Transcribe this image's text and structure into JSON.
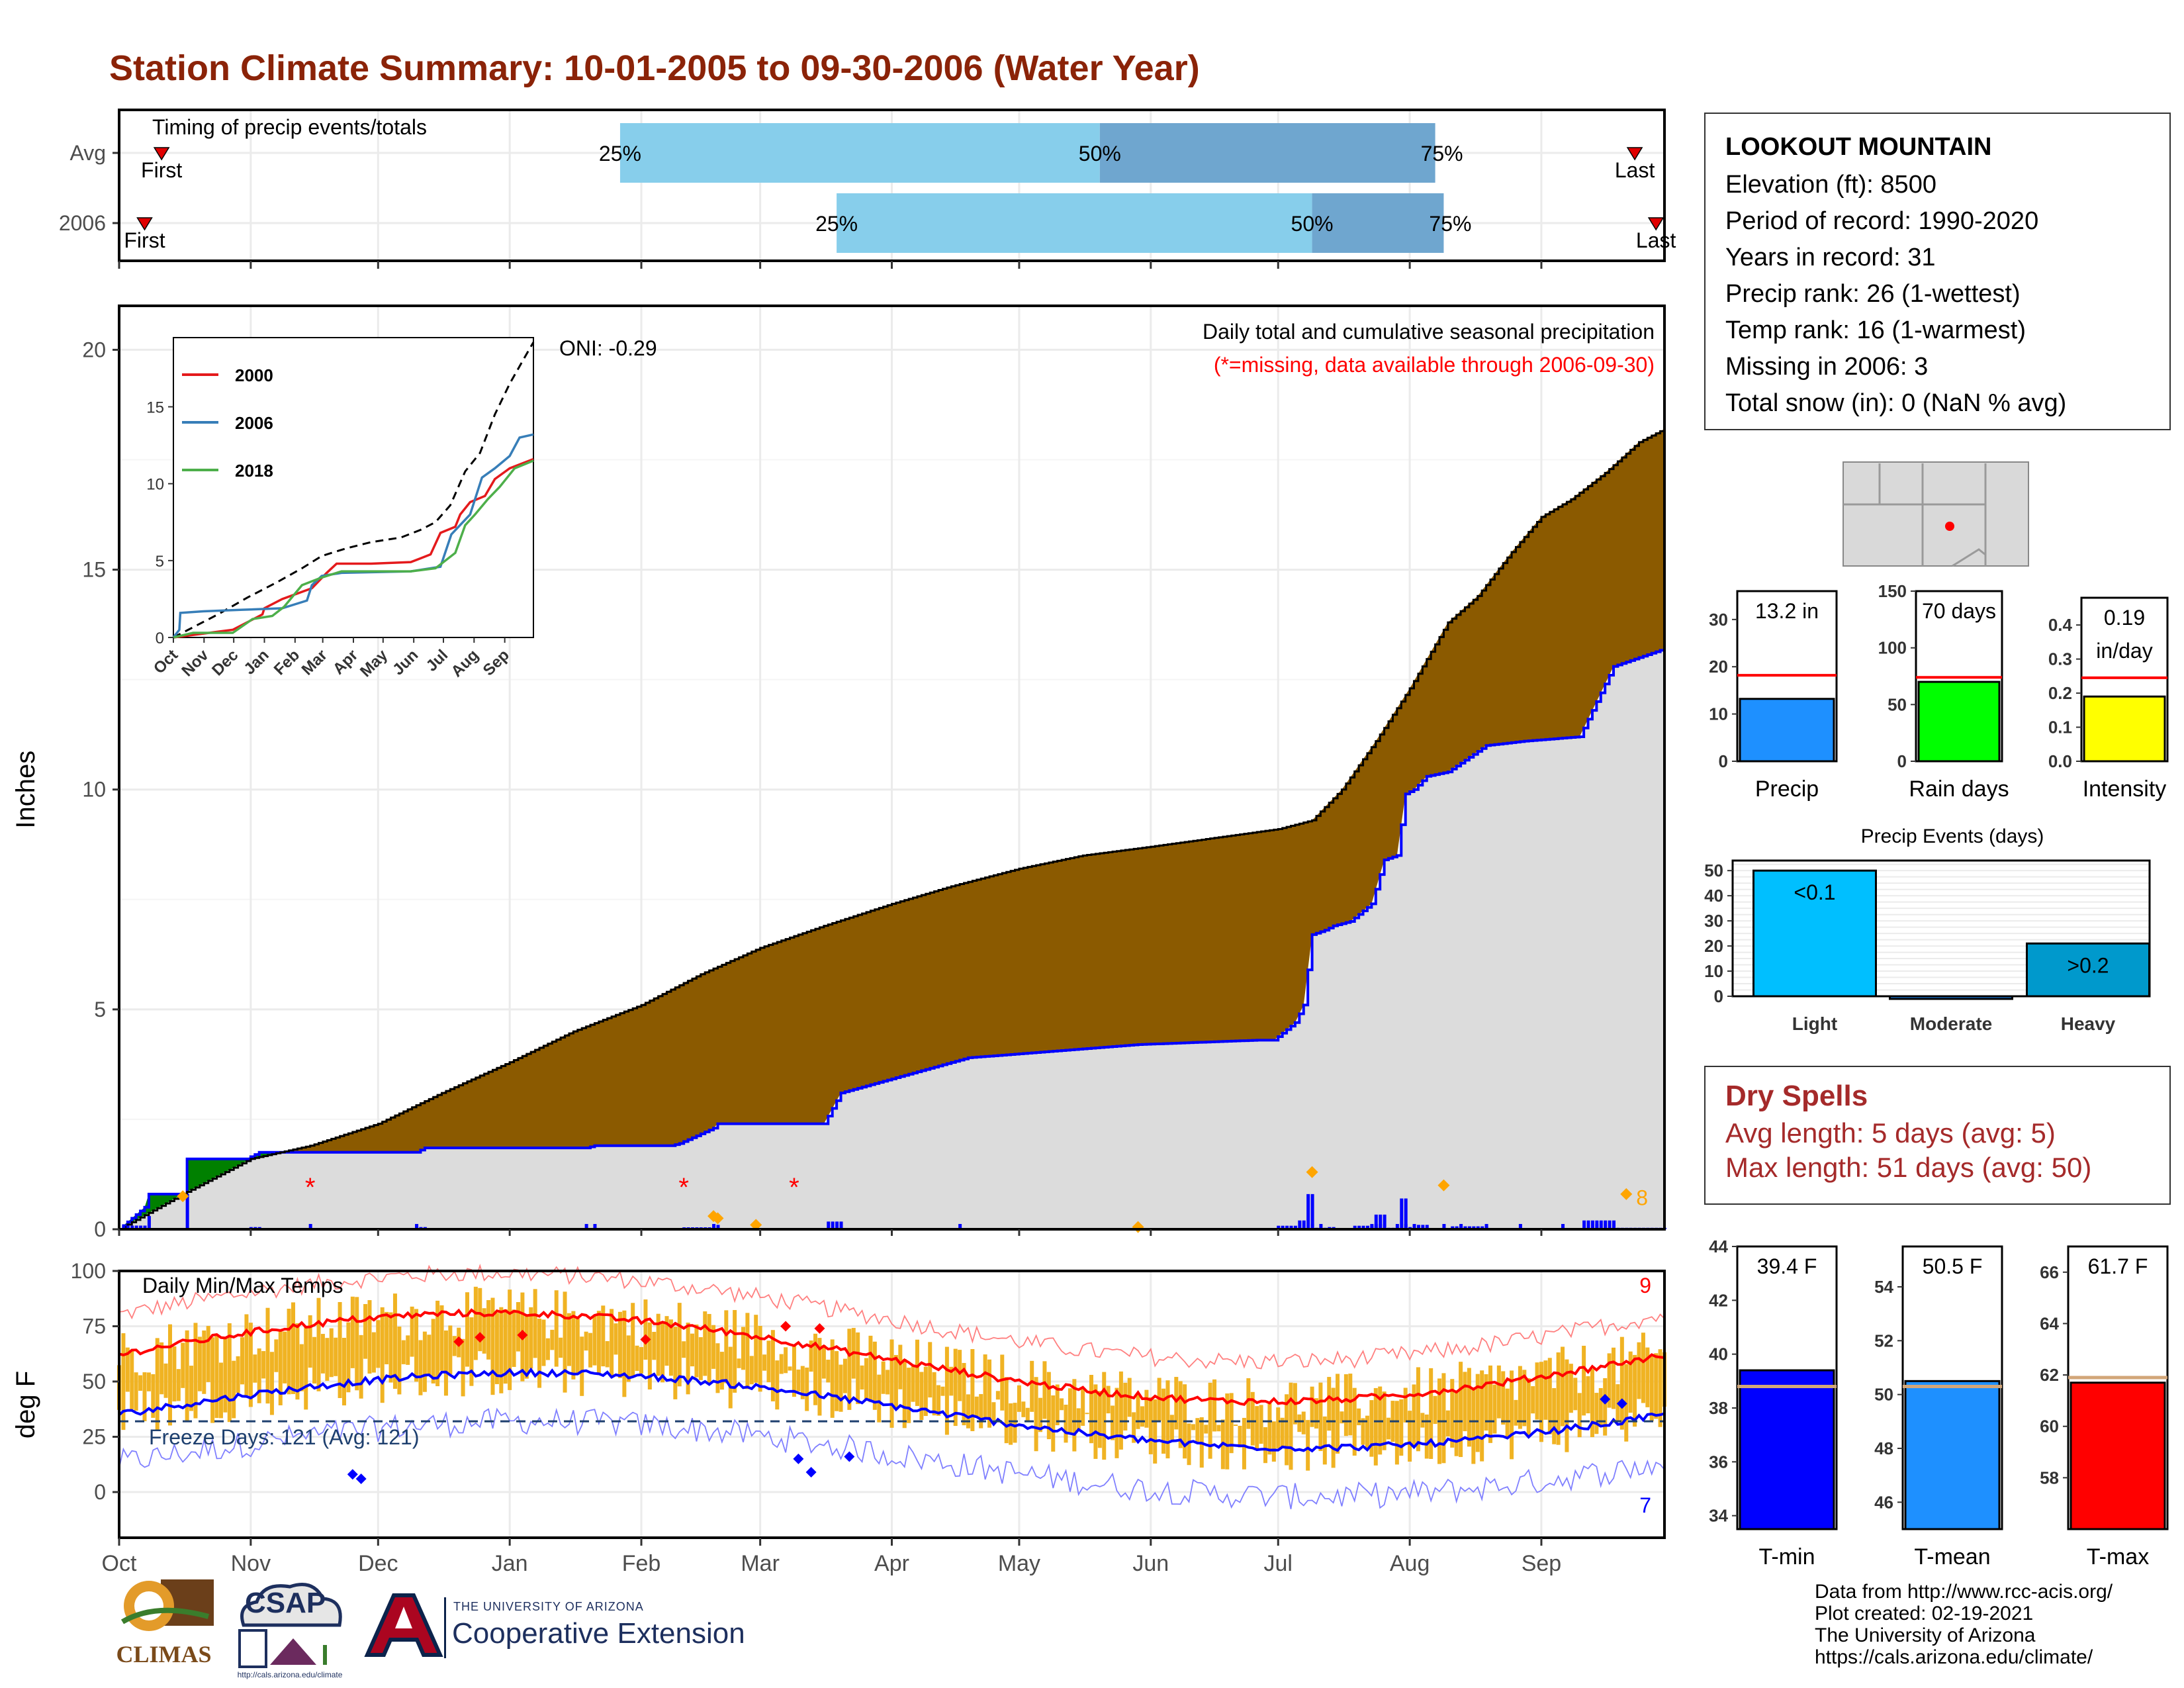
{
  "page": {
    "title": "Station Climate Summary: 10-01-2005 to 09-30-2006 (Water Year)"
  },
  "colors": {
    "title": "#8b2308",
    "avg_cum": "#8b5a00",
    "year_cum": "#0000ff",
    "excess": "#008000",
    "quartile_light": "#87ceeb",
    "quartile_dark": "#6fa6cf",
    "temp_bar": "#f0b323",
    "tmax_line": "#ff0000",
    "tmin_line": "#0000ff",
    "dry_spells": "#a52a2a"
  },
  "timing": {
    "label": "Timing of precip events/totals",
    "rows": [
      {
        "name": "Avg",
        "first": "First",
        "last": "Last",
        "p25_label": "25%",
        "p50_label": "50%",
        "p75_label": "75%",
        "first_day": 10,
        "p25_day": 118,
        "p50_day": 231,
        "p75_day": 310,
        "last_day": 357
      },
      {
        "name": "2006",
        "first": "First",
        "last": "Last",
        "p25_label": "25%",
        "p50_label": "50%",
        "p75_label": "75%",
        "first_day": 6,
        "p25_day": 169,
        "p50_day": 281,
        "p75_day": 312,
        "last_day": 362
      }
    ]
  },
  "precip_panel": {
    "title": "Daily total and cumulative seasonal precipitation",
    "subtitle": "(*=missing, data available through 2006-09-30)",
    "oni": "ONI: -0.29",
    "ylabel": "Inches",
    "yticks": [
      "0",
      "5",
      "10",
      "15",
      "20"
    ],
    "count_label": "8"
  },
  "inset": {
    "yticks": [
      "0",
      "5",
      "10",
      "15"
    ],
    "months": [
      "Oct",
      "Nov",
      "Dec",
      "Jan",
      "Feb",
      "Mar",
      "Apr",
      "May",
      "Jun",
      "Jul",
      "Aug",
      "Sep"
    ],
    "legend": [
      "2000",
      "2006",
      "2018"
    ]
  },
  "temp_panel": {
    "title": "Daily Min/Max Temps",
    "ylabel": "deg F",
    "yticks": [
      "0",
      "25",
      "50",
      "75",
      "100"
    ],
    "freeze_label": "Freeze Days: 121 (Avg: 121)",
    "max_count": "9",
    "min_count": "7"
  },
  "x_months": [
    "Oct",
    "Nov",
    "Dec",
    "Jan",
    "Feb",
    "Mar",
    "Apr",
    "May",
    "Jun",
    "Jul",
    "Aug",
    "Sep"
  ],
  "station": {
    "name": "LOOKOUT MOUNTAIN",
    "lines": [
      "Elevation (ft): 8500",
      "Period of record: 1990-2020",
      "Years in record: 31",
      "Precip rank: 26 (1-wettest)",
      "Temp rank: 16 (1-warmest)",
      "Missing in 2006: 3",
      "Total snow (in): 0 (NaN % avg)"
    ]
  },
  "mini_bars": [
    {
      "label": "Precip",
      "value_label": "13.2 in",
      "value": 13.2,
      "avg": 18.2,
      "yticks": [
        "0",
        "10",
        "20",
        "30"
      ],
      "ymax": 36,
      "color": "#1e90ff"
    },
    {
      "label": "Rain days",
      "value_label": "70 days",
      "value": 70,
      "avg": 74,
      "yticks": [
        "0",
        "50",
        "100",
        "150"
      ],
      "ymax": 150,
      "color": "#00ff00"
    },
    {
      "label": "Intensity",
      "value_label": "0.19",
      "value_label2": "in/day",
      "value": 0.19,
      "avg": 0.245,
      "yticks": [
        "0.0",
        "0.1",
        "0.2",
        "0.3",
        "0.4"
      ],
      "ymax": 0.48,
      "color": "#ffff00"
    }
  ],
  "precip_events": {
    "title": "Precip Events (days)",
    "yticks": [
      "0",
      "10",
      "20",
      "30",
      "40",
      "50"
    ],
    "bars": [
      {
        "label": "Light",
        "value": 50,
        "value_label": "<0.1",
        "color": "#00bfff"
      },
      {
        "label": "Moderate",
        "value": 0,
        "value_label": "",
        "color": "#1e90ff"
      },
      {
        "label": "Heavy",
        "value": 21,
        "value_label": ">0.2",
        "color": "#0099cc"
      }
    ]
  },
  "dry_spells": {
    "title": "Dry Spells",
    "avg_line": "Avg length: 5 days (avg: 5)",
    "max_line": "Max length: 51 days (avg: 50)"
  },
  "temp_bars": [
    {
      "label": "T-min",
      "value_label": "39.4 F",
      "value": 39.4,
      "avg": 38.8,
      "ymin": 33.5,
      "ymax": 44,
      "yticks": [
        "34",
        "36",
        "38",
        "40",
        "42",
        "44"
      ],
      "color": "#0000ff"
    },
    {
      "label": "T-mean",
      "value_label": "50.5 F",
      "value": 50.5,
      "avg": 50.3,
      "ymin": 45,
      "ymax": 55.5,
      "yticks": [
        "46",
        "48",
        "50",
        "52",
        "54"
      ],
      "color": "#1e90ff"
    },
    {
      "label": "T-max",
      "value_label": "61.7 F",
      "value": 61.7,
      "avg": 61.9,
      "ymin": 56,
      "ymax": 67,
      "yticks": [
        "58",
        "60",
        "62",
        "64",
        "66"
      ],
      "color": "#ff0000"
    }
  ],
  "footer": {
    "lines": [
      "Data from http://www.rcc-acis.org/",
      "Plot created: 02-19-2021",
      "The University of Arizona",
      "https://cals.arizona.edu/climate/"
    ]
  },
  "logos": {
    "climas": "CLIMAS",
    "csap": "CSAP",
    "csap_url": "http://cals.arizona.edu/climate",
    "ua_small": "THE UNIVERSITY OF ARIZONA",
    "ua_big": "Cooperative Extension"
  },
  "chart_data": {
    "type": "area",
    "title": "Daily total and cumulative seasonal precipitation",
    "ylabel": "Inches",
    "ylim": [
      0,
      20
    ],
    "x_unit": "day of water year (0 = Oct 1)",
    "series": [
      {
        "name": "Avg cumulative",
        "x": [
          0,
          15,
          31,
          45,
          61,
          76,
          92,
          107,
          123,
          137,
          151,
          166,
          182,
          196,
          212,
          227,
          243,
          258,
          273,
          281,
          288,
          296,
          304,
          313,
          320,
          328,
          335,
          342,
          350,
          358,
          364
        ],
        "values": [
          0,
          0.8,
          1.6,
          1.9,
          2.4,
          3.1,
          3.8,
          4.5,
          5.1,
          5.8,
          6.4,
          6.9,
          7.4,
          7.8,
          8.2,
          8.5,
          8.7,
          8.9,
          9.1,
          9.3,
          10.0,
          11.1,
          12.3,
          13.8,
          14.4,
          15.4,
          16.2,
          16.6,
          17.2,
          17.9,
          18.2
        ]
      },
      {
        "name": "2006 cumulative",
        "x": [
          0,
          6,
          7,
          15,
          16,
          30,
          33,
          70,
          72,
          110,
          112,
          130,
          132,
          140,
          141,
          145,
          150,
          166,
          170,
          200,
          240,
          268,
          272,
          277,
          279,
          281,
          284,
          286,
          290,
          295,
          298,
          301,
          303,
          305,
          308,
          313,
          316,
          322,
          331,
          344,
          347,
          352,
          355,
          358,
          364
        ],
        "values": [
          0,
          0.5,
          0.8,
          0.8,
          1.6,
          1.6,
          1.75,
          1.75,
          1.85,
          1.85,
          1.9,
          1.9,
          1.95,
          2.3,
          2.4,
          2.4,
          2.4,
          2.4,
          3.1,
          3.9,
          4.2,
          4.3,
          4.3,
          4.7,
          5.1,
          6.7,
          6.8,
          6.9,
          7.0,
          7.4,
          8.4,
          8.5,
          9.9,
          10.0,
          10.3,
          10.4,
          10.6,
          11.0,
          11.1,
          11.2,
          11.8,
          12.8,
          12.9,
          13.0,
          13.2
        ]
      }
    ]
  }
}
